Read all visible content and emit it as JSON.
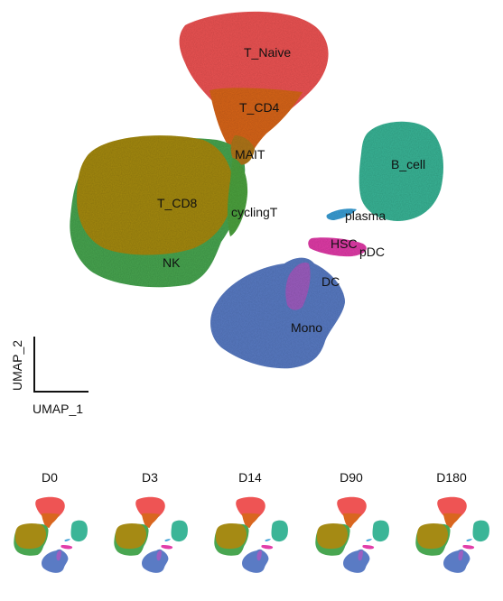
{
  "main_umap": {
    "x_axis_label": "UMAP_1",
    "y_axis_label": "UMAP_2",
    "clusters": [
      {
        "name": "T_Naive",
        "color": "#ee5454"
      },
      {
        "name": "T_CD4",
        "color": "#d9661f"
      },
      {
        "name": "MAIT",
        "color": "#b0771a"
      },
      {
        "name": "T_CD8",
        "color": "#a58a14"
      },
      {
        "name": "cyclingT",
        "color": "#4da33f"
      },
      {
        "name": "NK",
        "color": "#49a651"
      },
      {
        "name": "B_cell",
        "color": "#3bb597"
      },
      {
        "name": "plasma",
        "color": "#3a9fd6"
      },
      {
        "name": "HSC",
        "color": "#e23ea9"
      },
      {
        "name": "pDC",
        "color": "#d6389e"
      },
      {
        "name": "DC",
        "color": "#9d5ec1"
      },
      {
        "name": "Mono",
        "color": "#5a7bc4"
      }
    ]
  },
  "timepoints": [
    {
      "label": "D0"
    },
    {
      "label": "D3"
    },
    {
      "label": "D14"
    },
    {
      "label": "D90"
    },
    {
      "label": "D180"
    }
  ]
}
